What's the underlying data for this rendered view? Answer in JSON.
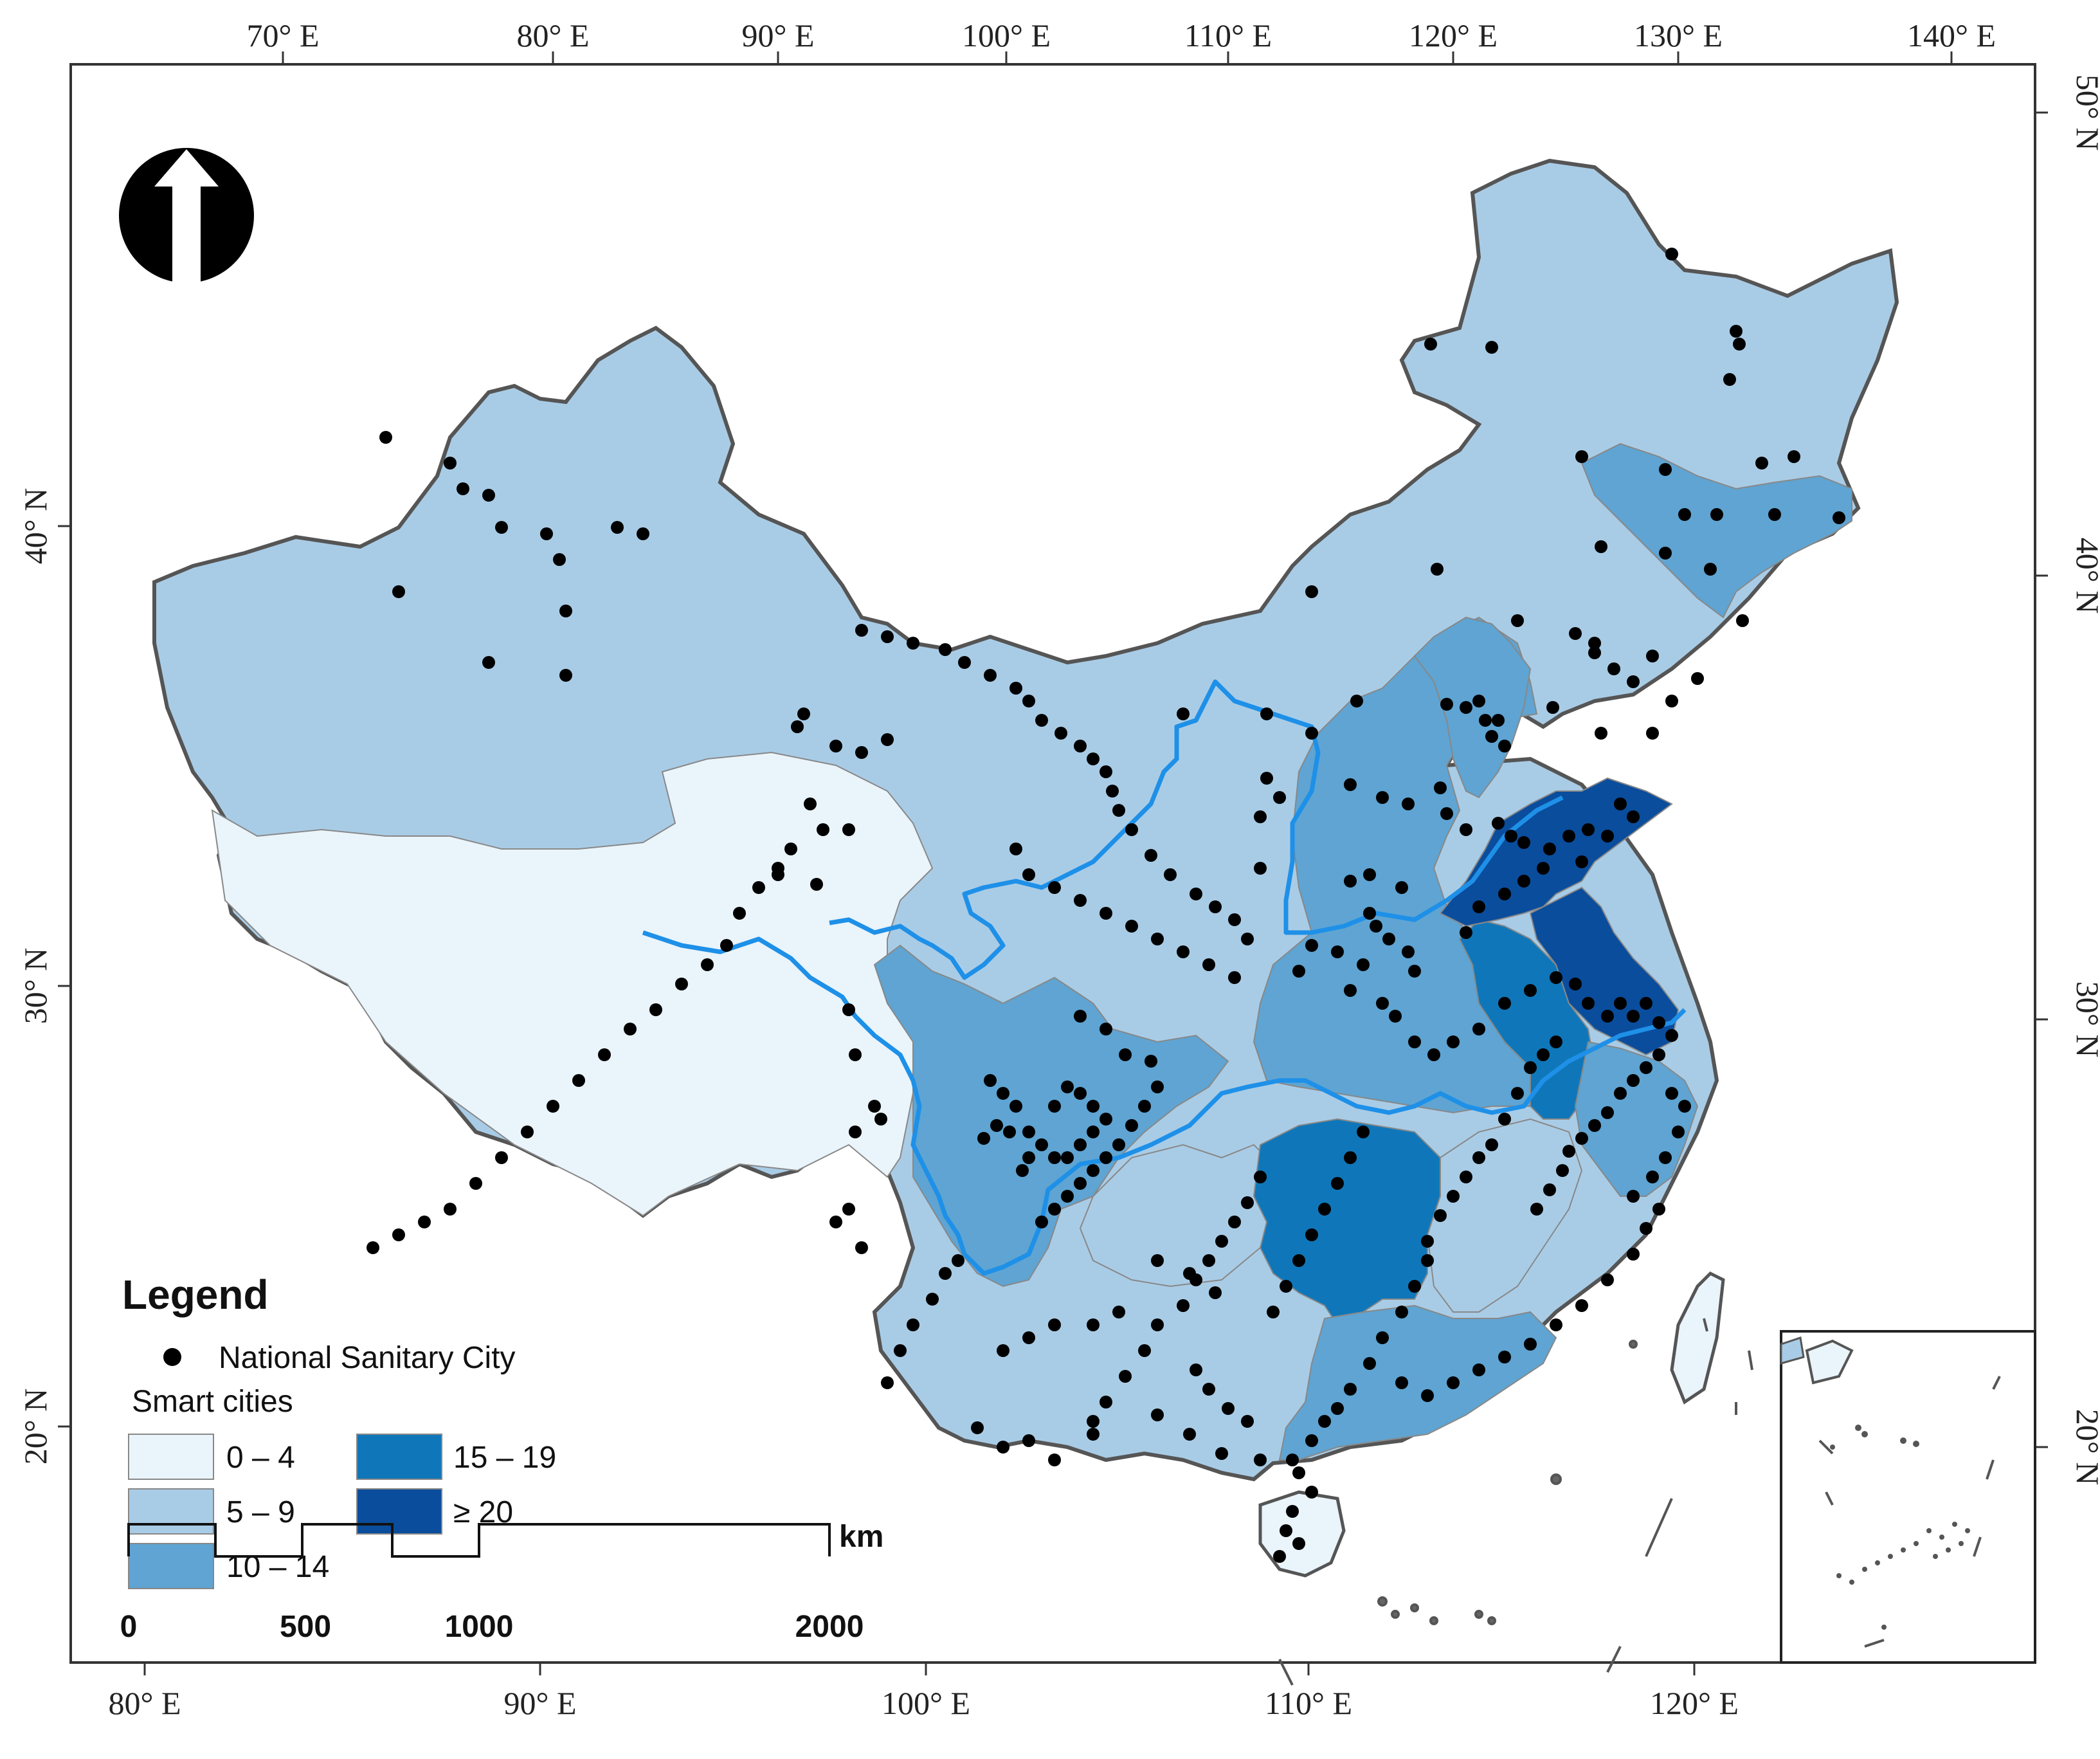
{
  "map": {
    "top_lon_labels": [
      "70° E",
      "80° E",
      "90° E",
      "100° E",
      "110° E",
      "120° E",
      "130° E",
      "140° E"
    ],
    "bottom_lon_labels": [
      "80° E",
      "90° E",
      "100° E",
      "110° E",
      "120° E"
    ],
    "left_lat_labels": [
      "40° N",
      "30° N",
      "20° N"
    ],
    "right_lat_labels": [
      "50° N",
      "40° N",
      "30° N",
      "20° N"
    ]
  },
  "legend": {
    "title": "Legend",
    "point_label": "National Sanitary City",
    "class_title": "Smart cities",
    "classes": [
      {
        "label": "0 – 4",
        "color": "#eaf4fb"
      },
      {
        "label": "5 – 9",
        "color": "#a9cce6"
      },
      {
        "label": "10 – 14",
        "color": "#5fa4d2"
      },
      {
        "label": "15 – 19",
        "color": "#0f77b9"
      },
      {
        "label": "≥ 20",
        "color": "#0a4d9c"
      }
    ]
  },
  "scale_bar": {
    "unit": "km",
    "ticks": [
      "0",
      "500",
      "1000",
      "2000"
    ]
  },
  "colors": {
    "river": "#1e90e8",
    "border": "#555555",
    "point": "#000000"
  }
}
